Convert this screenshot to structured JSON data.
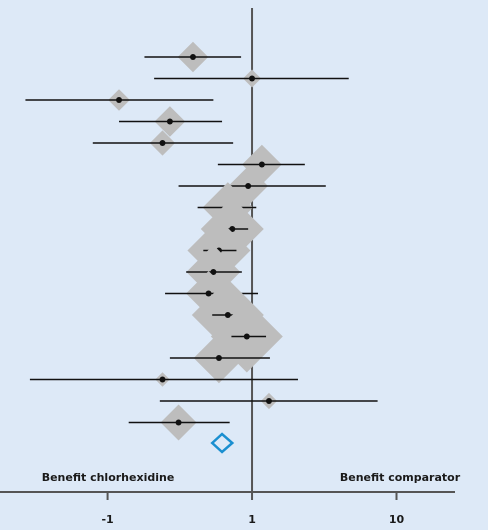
{
  "chart_data": {
    "type": "forest",
    "estimates": [
      0.39,
      1.0,
      0.12,
      0.27,
      0.24,
      1.17,
      0.94,
      0.68,
      0.73,
      0.59,
      0.54,
      0.5,
      0.68,
      0.92,
      0.59,
      0.24,
      1.31,
      0.31
    ],
    "lower": [
      0.18,
      0.21,
      0.027,
      0.12,
      0.079,
      0.58,
      0.31,
      0.42,
      0.56,
      0.46,
      0.35,
      0.25,
      0.53,
      0.72,
      0.27,
      0.029,
      0.23,
      0.14
    ],
    "upper": [
      0.84,
      4.67,
      0.54,
      0.62,
      0.74,
      2.32,
      3.24,
      1.07,
      0.94,
      0.78,
      0.85,
      1.1,
      0.85,
      1.25,
      1.33,
      2.08,
      7.4,
      0.7
    ],
    "weights": [
      17,
      10,
      12,
      17,
      14,
      22,
      22,
      28,
      35,
      35,
      30,
      25,
      40,
      40,
      28,
      8,
      9,
      20
    ],
    "summary": {
      "estimate": 0.62,
      "lower": 0.53,
      "upper": 0.73,
      "color": "#1a8fd0"
    },
    "marker_color": "#bdbdbd",
    "point_color": "#111111",
    "xlim": [
      0.018,
      43
    ],
    "log_x": true,
    "reference": 1,
    "xticks": [
      {
        "value": 0.1,
        "label": "-1"
      },
      1,
      10
    ],
    "annotations": [
      "Benefit chlorhexidine",
      "Benefit comparator"
    ]
  }
}
